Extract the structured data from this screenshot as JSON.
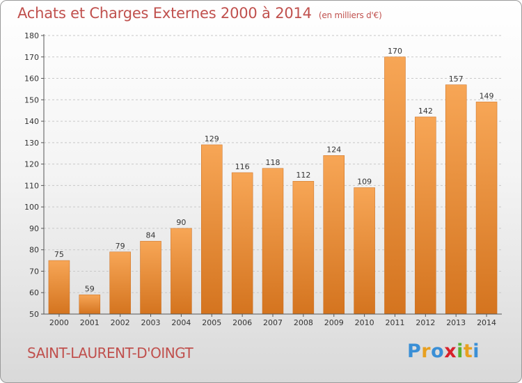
{
  "header": {
    "title": "Achats et Charges Externes 2000 à 2014",
    "unit": "(en milliers d'€)"
  },
  "footer": {
    "commune": "SAINT-LAURENT-D'OINGT",
    "logo": "Proxiti",
    "logo_colors": [
      "#3a8fd6",
      "#e8a020",
      "#3a8fd6",
      "#d8202a",
      "#5bb030",
      "#e8a020",
      "#3a8fd6"
    ]
  },
  "colors": {
    "bar_light": "#f7a656",
    "bar_dark": "#d4741f",
    "text": "#c0504d",
    "axis": "#555555",
    "grid": "#c8c8c8"
  },
  "chart_data": {
    "type": "bar",
    "title": "Achats et Charges Externes 2000 à 2014",
    "subtitle": "(en milliers d'€)",
    "categories": [
      "2000",
      "2001",
      "2002",
      "2003",
      "2004",
      "2005",
      "2006",
      "2007",
      "2008",
      "2009",
      "2010",
      "2011",
      "2012",
      "2013",
      "2014"
    ],
    "values": [
      75,
      59,
      79,
      84,
      90,
      129,
      116,
      118,
      112,
      124,
      109,
      170,
      142,
      157,
      149
    ],
    "ylim": [
      50,
      180
    ],
    "yticks": [
      50,
      60,
      70,
      80,
      90,
      100,
      110,
      120,
      130,
      140,
      150,
      160,
      170,
      180
    ],
    "grid": "horizontal dashed",
    "xlabel": "",
    "ylabel": ""
  }
}
